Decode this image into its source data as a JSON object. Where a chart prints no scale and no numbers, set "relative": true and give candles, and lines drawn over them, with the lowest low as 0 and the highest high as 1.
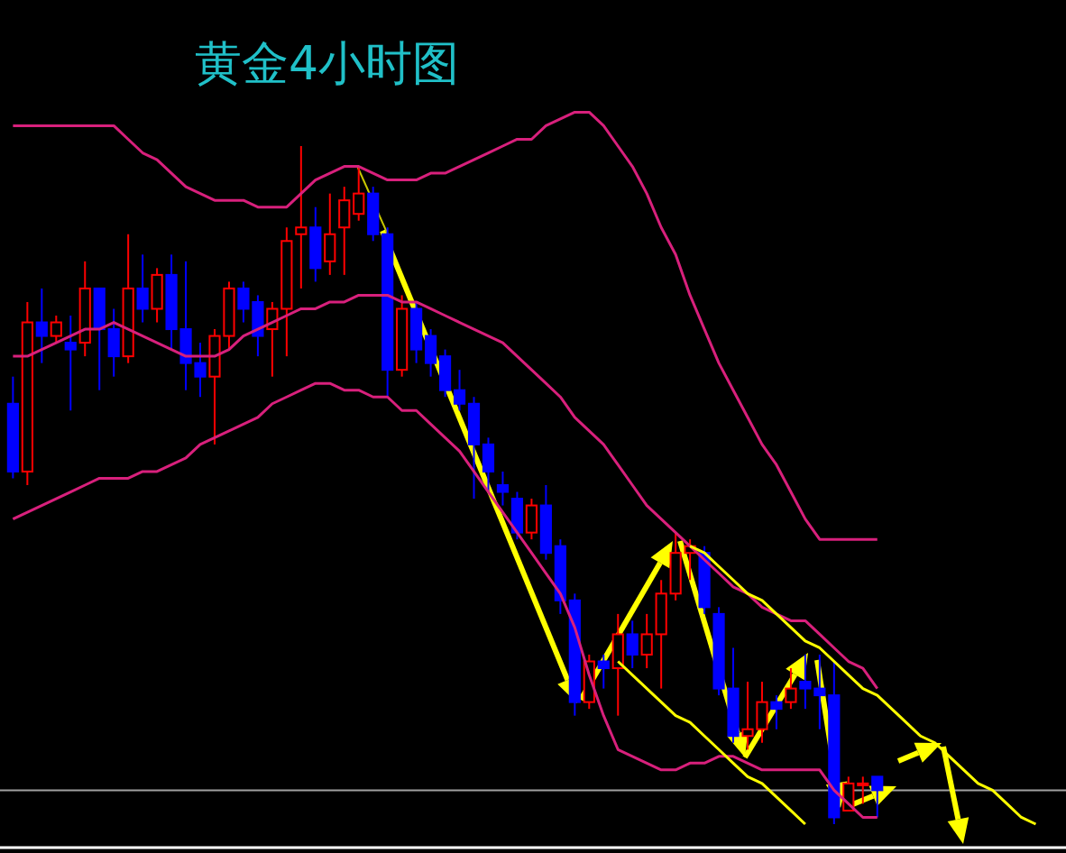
{
  "chart_data": {
    "type": "candlestick",
    "title": "黄金4小时图",
    "relative": true,
    "categories": [
      null,
      null,
      null,
      null,
      null,
      null,
      null,
      null,
      null,
      null,
      null,
      null,
      null,
      null,
      null,
      null,
      null,
      null,
      null,
      null,
      null,
      null,
      null,
      null,
      null,
      null,
      null,
      null,
      null,
      null,
      null,
      null,
      null,
      null,
      null,
      null,
      null,
      null,
      null,
      null,
      null,
      null,
      null,
      null,
      null,
      null,
      null,
      null,
      null,
      null,
      null,
      null,
      null,
      null,
      null,
      null,
      null,
      null,
      null,
      null,
      null,
      null,
      null,
      null,
      null,
      null,
      null,
      null,
      null,
      null,
      null,
      null,
      null,
      null
    ],
    "ohlc": [
      [
        0.62,
        0.66,
        0.51,
        0.52
      ],
      [
        0.52,
        0.77,
        0.5,
        0.74
      ],
      [
        0.74,
        0.79,
        0.68,
        0.72
      ],
      [
        0.72,
        0.75,
        0.71,
        0.74
      ],
      [
        0.71,
        0.75,
        0.61,
        0.7
      ],
      [
        0.71,
        0.83,
        0.69,
        0.79
      ],
      [
        0.79,
        0.79,
        0.64,
        0.73
      ],
      [
        0.73,
        0.76,
        0.66,
        0.69
      ],
      [
        0.69,
        0.87,
        0.68,
        0.79
      ],
      [
        0.79,
        0.84,
        0.74,
        0.76
      ],
      [
        0.76,
        0.82,
        0.74,
        0.81
      ],
      [
        0.81,
        0.84,
        0.7,
        0.73
      ],
      [
        0.73,
        0.83,
        0.64,
        0.68
      ],
      [
        0.68,
        0.71,
        0.63,
        0.66
      ],
      [
        0.66,
        0.73,
        0.56,
        0.72
      ],
      [
        0.72,
        0.8,
        0.7,
        0.79
      ],
      [
        0.79,
        0.8,
        0.74,
        0.76
      ],
      [
        0.77,
        0.78,
        0.69,
        0.72
      ],
      [
        0.73,
        0.77,
        0.66,
        0.76
      ],
      [
        0.76,
        0.88,
        0.69,
        0.86
      ],
      [
        0.87,
        1.0,
        0.79,
        0.88
      ],
      [
        0.88,
        0.91,
        0.8,
        0.82
      ],
      [
        0.83,
        0.93,
        0.81,
        0.87
      ],
      [
        0.88,
        0.94,
        0.81,
        0.92
      ],
      [
        0.9,
        0.97,
        0.89,
        0.93
      ],
      [
        0.93,
        0.94,
        0.86,
        0.87
      ],
      [
        0.87,
        0.88,
        0.63,
        0.67
      ],
      [
        0.67,
        0.78,
        0.66,
        0.76
      ],
      [
        0.76,
        0.77,
        0.68,
        0.7
      ],
      [
        0.72,
        0.73,
        0.66,
        0.68
      ],
      [
        0.69,
        0.7,
        0.63,
        0.64
      ],
      [
        0.64,
        0.67,
        0.61,
        0.62
      ],
      [
        0.62,
        0.63,
        0.48,
        0.56
      ],
      [
        0.56,
        0.57,
        0.49,
        0.52
      ],
      [
        0.5,
        0.52,
        0.47,
        0.49
      ],
      [
        0.48,
        0.49,
        0.42,
        0.43
      ],
      [
        0.43,
        0.48,
        0.42,
        0.47
      ],
      [
        0.47,
        0.5,
        0.39,
        0.4
      ],
      [
        0.41,
        0.42,
        0.31,
        0.33
      ],
      [
        0.33,
        0.34,
        0.16,
        0.18
      ],
      [
        0.18,
        0.25,
        0.17,
        0.24
      ],
      [
        0.24,
        0.25,
        0.2,
        0.23
      ],
      [
        0.23,
        0.31,
        0.16,
        0.28
      ],
      [
        0.28,
        0.3,
        0.23,
        0.25
      ],
      [
        0.25,
        0.31,
        0.23,
        0.28
      ],
      [
        0.28,
        0.36,
        0.2,
        0.34
      ],
      [
        0.34,
        0.43,
        0.33,
        0.4
      ],
      [
        0.4,
        0.42,
        0.36,
        0.41
      ],
      [
        0.4,
        0.41,
        0.31,
        0.32
      ],
      [
        0.31,
        0.32,
        0.19,
        0.2
      ],
      [
        0.2,
        0.26,
        0.12,
        0.13
      ],
      [
        0.13,
        0.21,
        0.11,
        0.14
      ],
      [
        0.14,
        0.21,
        0.12,
        0.18
      ],
      [
        0.18,
        0.19,
        0.14,
        0.17
      ],
      [
        0.18,
        0.23,
        0.17,
        0.2
      ],
      [
        0.21,
        0.25,
        0.17,
        0.2
      ],
      [
        0.2,
        0.25,
        0.14,
        0.19
      ],
      [
        0.19,
        0.24,
        0.0,
        0.01
      ],
      [
        0.02,
        0.07,
        0.02,
        0.06
      ],
      [
        0.06,
        0.07,
        0.03,
        0.06
      ],
      [
        0.07,
        0.07,
        0.01,
        0.05
      ],
      null,
      null,
      null,
      null,
      null,
      null,
      null,
      null,
      null,
      null,
      null,
      null,
      null
    ],
    "colors": [
      "#0000ff",
      "#ff0000",
      "#0000ff",
      "#ff0000",
      "#0000ff",
      "#ff0000",
      "#0000ff",
      "#0000ff",
      "#ff0000",
      "#0000ff",
      "#ff0000",
      "#0000ff",
      "#0000ff",
      "#0000ff",
      "#ff0000",
      "#ff0000",
      "#0000ff",
      "#0000ff",
      "#ff0000",
      "#ff0000",
      "#ff0000",
      "#0000ff",
      "#ff0000",
      "#ff0000",
      "#ff0000",
      "#0000ff",
      "#0000ff",
      "#ff0000",
      "#0000ff",
      "#0000ff",
      "#0000ff",
      "#0000ff",
      "#0000ff",
      "#0000ff",
      "#0000ff",
      "#0000ff",
      "#ff0000",
      "#0000ff",
      "#0000ff",
      "#0000ff",
      "#ff0000",
      "#0000ff",
      "#ff0000",
      "#0000ff",
      "#ff0000",
      "#ff0000",
      "#ff0000",
      "#ff0000",
      "#0000ff",
      "#0000ff",
      "#0000ff",
      "#ff0000",
      "#ff0000",
      "#0000ff",
      "#ff0000",
      "#0000ff",
      "#0000ff",
      "#0000ff",
      "#ff0000",
      "#ff0000",
      "#0000ff",
      null,
      null,
      null,
      null,
      null,
      null,
      null,
      null,
      null,
      null,
      null,
      null,
      null
    ],
    "series": [
      {
        "type": "line",
        "color": "#d8207c",
        "values": [
          1.03,
          1.03,
          1.03,
          1.03,
          1.03,
          1.03,
          1.03,
          1.03,
          1.01,
          0.99,
          0.98,
          0.96,
          0.94,
          0.93,
          0.92,
          0.92,
          0.92,
          0.91,
          0.91,
          0.91,
          0.93,
          0.95,
          0.96,
          0.97,
          0.97,
          0.96,
          0.95,
          0.95,
          0.95,
          0.96,
          0.96,
          0.97,
          0.98,
          0.99,
          1.0,
          1.01,
          1.01,
          1.03,
          1.04,
          1.05,
          1.05,
          1.03,
          1.0,
          0.97,
          0.93,
          0.88,
          0.84,
          0.78,
          0.73,
          0.68,
          0.64,
          0.6,
          0.56,
          0.53,
          0.49,
          0.45,
          0.42,
          0.42,
          0.42,
          0.42,
          0.42,
          null,
          null,
          null,
          null,
          null,
          null,
          null,
          null,
          null,
          null,
          null,
          null,
          null
        ]
      },
      {
        "type": "line",
        "color": "#d8207c",
        "values": [
          0.69,
          0.69,
          0.7,
          0.71,
          0.72,
          0.73,
          0.73,
          0.74,
          0.73,
          0.72,
          0.71,
          0.7,
          0.69,
          0.69,
          0.69,
          0.7,
          0.72,
          0.73,
          0.74,
          0.75,
          0.76,
          0.76,
          0.77,
          0.77,
          0.78,
          0.78,
          0.78,
          0.77,
          0.77,
          0.76,
          0.75,
          0.74,
          0.73,
          0.72,
          0.71,
          0.69,
          0.67,
          0.65,
          0.63,
          0.6,
          0.58,
          0.56,
          0.53,
          0.5,
          0.47,
          0.45,
          0.43,
          0.41,
          0.39,
          0.37,
          0.35,
          0.34,
          0.32,
          0.31,
          0.3,
          0.3,
          0.28,
          0.26,
          0.24,
          0.23,
          0.2,
          null,
          null,
          null,
          null,
          null,
          null,
          null,
          null,
          null,
          null,
          null,
          null,
          null
        ]
      },
      {
        "type": "line",
        "color": "#d8207c",
        "values": [
          0.45,
          0.46,
          0.47,
          0.48,
          0.49,
          0.5,
          0.51,
          0.51,
          0.51,
          0.52,
          0.52,
          0.53,
          0.54,
          0.56,
          0.57,
          0.58,
          0.59,
          0.6,
          0.62,
          0.63,
          0.64,
          0.65,
          0.65,
          0.64,
          0.64,
          0.63,
          0.63,
          0.61,
          0.61,
          0.59,
          0.57,
          0.55,
          0.52,
          0.49,
          0.46,
          0.43,
          0.4,
          0.37,
          0.34,
          0.29,
          0.22,
          0.16,
          0.11,
          0.1,
          0.09,
          0.08,
          0.08,
          0.09,
          0.09,
          0.1,
          0.1,
          0.09,
          0.08,
          0.08,
          0.08,
          0.08,
          0.08,
          0.05,
          0.03,
          0.01,
          0.01,
          null,
          null,
          null,
          null,
          null,
          null,
          null,
          null,
          null,
          null,
          null,
          null,
          null
        ]
      },
      {
        "type": "line",
        "color": "#ffff00",
        "values": [
          null,
          null,
          null,
          null,
          null,
          null,
          null,
          null,
          null,
          null,
          null,
          null,
          null,
          null,
          null,
          null,
          null,
          null,
          null,
          null,
          null,
          null,
          null,
          null,
          null,
          null,
          null,
          null,
          null,
          null,
          null,
          null,
          null,
          null,
          null,
          null,
          null,
          null,
          null,
          null,
          null,
          null,
          null,
          null,
          null,
          null,
          null,
          0.41,
          0.4,
          0.38,
          0.36,
          0.34,
          0.33,
          0.31,
          0.29,
          0.27,
          0.26,
          0.24,
          0.22,
          0.2,
          0.19,
          0.17,
          0.15,
          0.13,
          0.12,
          0.1,
          0.08,
          0.06,
          0.05,
          0.03,
          0.01,
          0.0,
          null,
          null
        ]
      },
      {
        "type": "line",
        "color": "#ffff00",
        "values": [
          null,
          null,
          null,
          null,
          null,
          null,
          null,
          null,
          null,
          null,
          null,
          null,
          null,
          null,
          null,
          null,
          null,
          null,
          null,
          null,
          null,
          null,
          null,
          null,
          null,
          null,
          null,
          null,
          null,
          null,
          null,
          null,
          null,
          null,
          null,
          null,
          null,
          null,
          null,
          null,
          null,
          null,
          0.24,
          0.22,
          0.2,
          0.18,
          0.16,
          0.15,
          0.13,
          0.11,
          0.09,
          0.07,
          0.06,
          0.04,
          0.02,
          0.0,
          null,
          null,
          null,
          null,
          null,
          null,
          null,
          null,
          null,
          null,
          null,
          null,
          null,
          null,
          null,
          null,
          null,
          null
        ]
      }
    ],
    "ref_lines": [
      {
        "axis": "y",
        "value": 0.05,
        "color": "#a0a0a0"
      }
    ]
  }
}
